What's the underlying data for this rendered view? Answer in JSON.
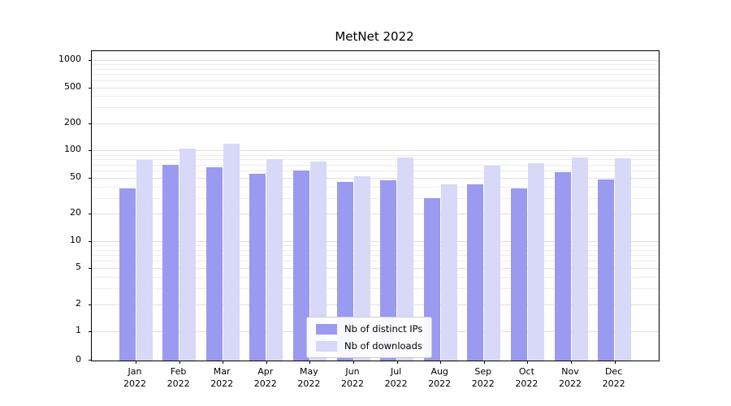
{
  "title": "MetNet 2022",
  "chart_data": {
    "type": "bar",
    "title": "MetNet 2022",
    "yscale": "symlog",
    "ylim": [
      0,
      1259
    ],
    "yticks": [
      0,
      1,
      2,
      5,
      10,
      20,
      50,
      100,
      200,
      500,
      1000
    ],
    "grid": "horizontal log major+minor gridlines",
    "legend_position": "lower center",
    "categories": [
      "Jan 2022",
      "Feb 2022",
      "Mar 2022",
      "Apr 2022",
      "May 2022",
      "Jun 2022",
      "Jul 2022",
      "Aug 2022",
      "Sep 2022",
      "Oct 2022",
      "Nov 2022",
      "Dec 2022"
    ],
    "series": [
      {
        "name": "Nb of distinct IPs",
        "color": "#9a9af0",
        "values": [
          38,
          70,
          65,
          55,
          60,
          45,
          47,
          30,
          42,
          38,
          58,
          48
        ]
      },
      {
        "name": "Nb of downloads",
        "color": "#d8d8f8",
        "values": [
          78,
          105,
          120,
          80,
          76,
          52,
          84,
          42,
          68,
          72,
          84,
          82
        ]
      }
    ]
  }
}
